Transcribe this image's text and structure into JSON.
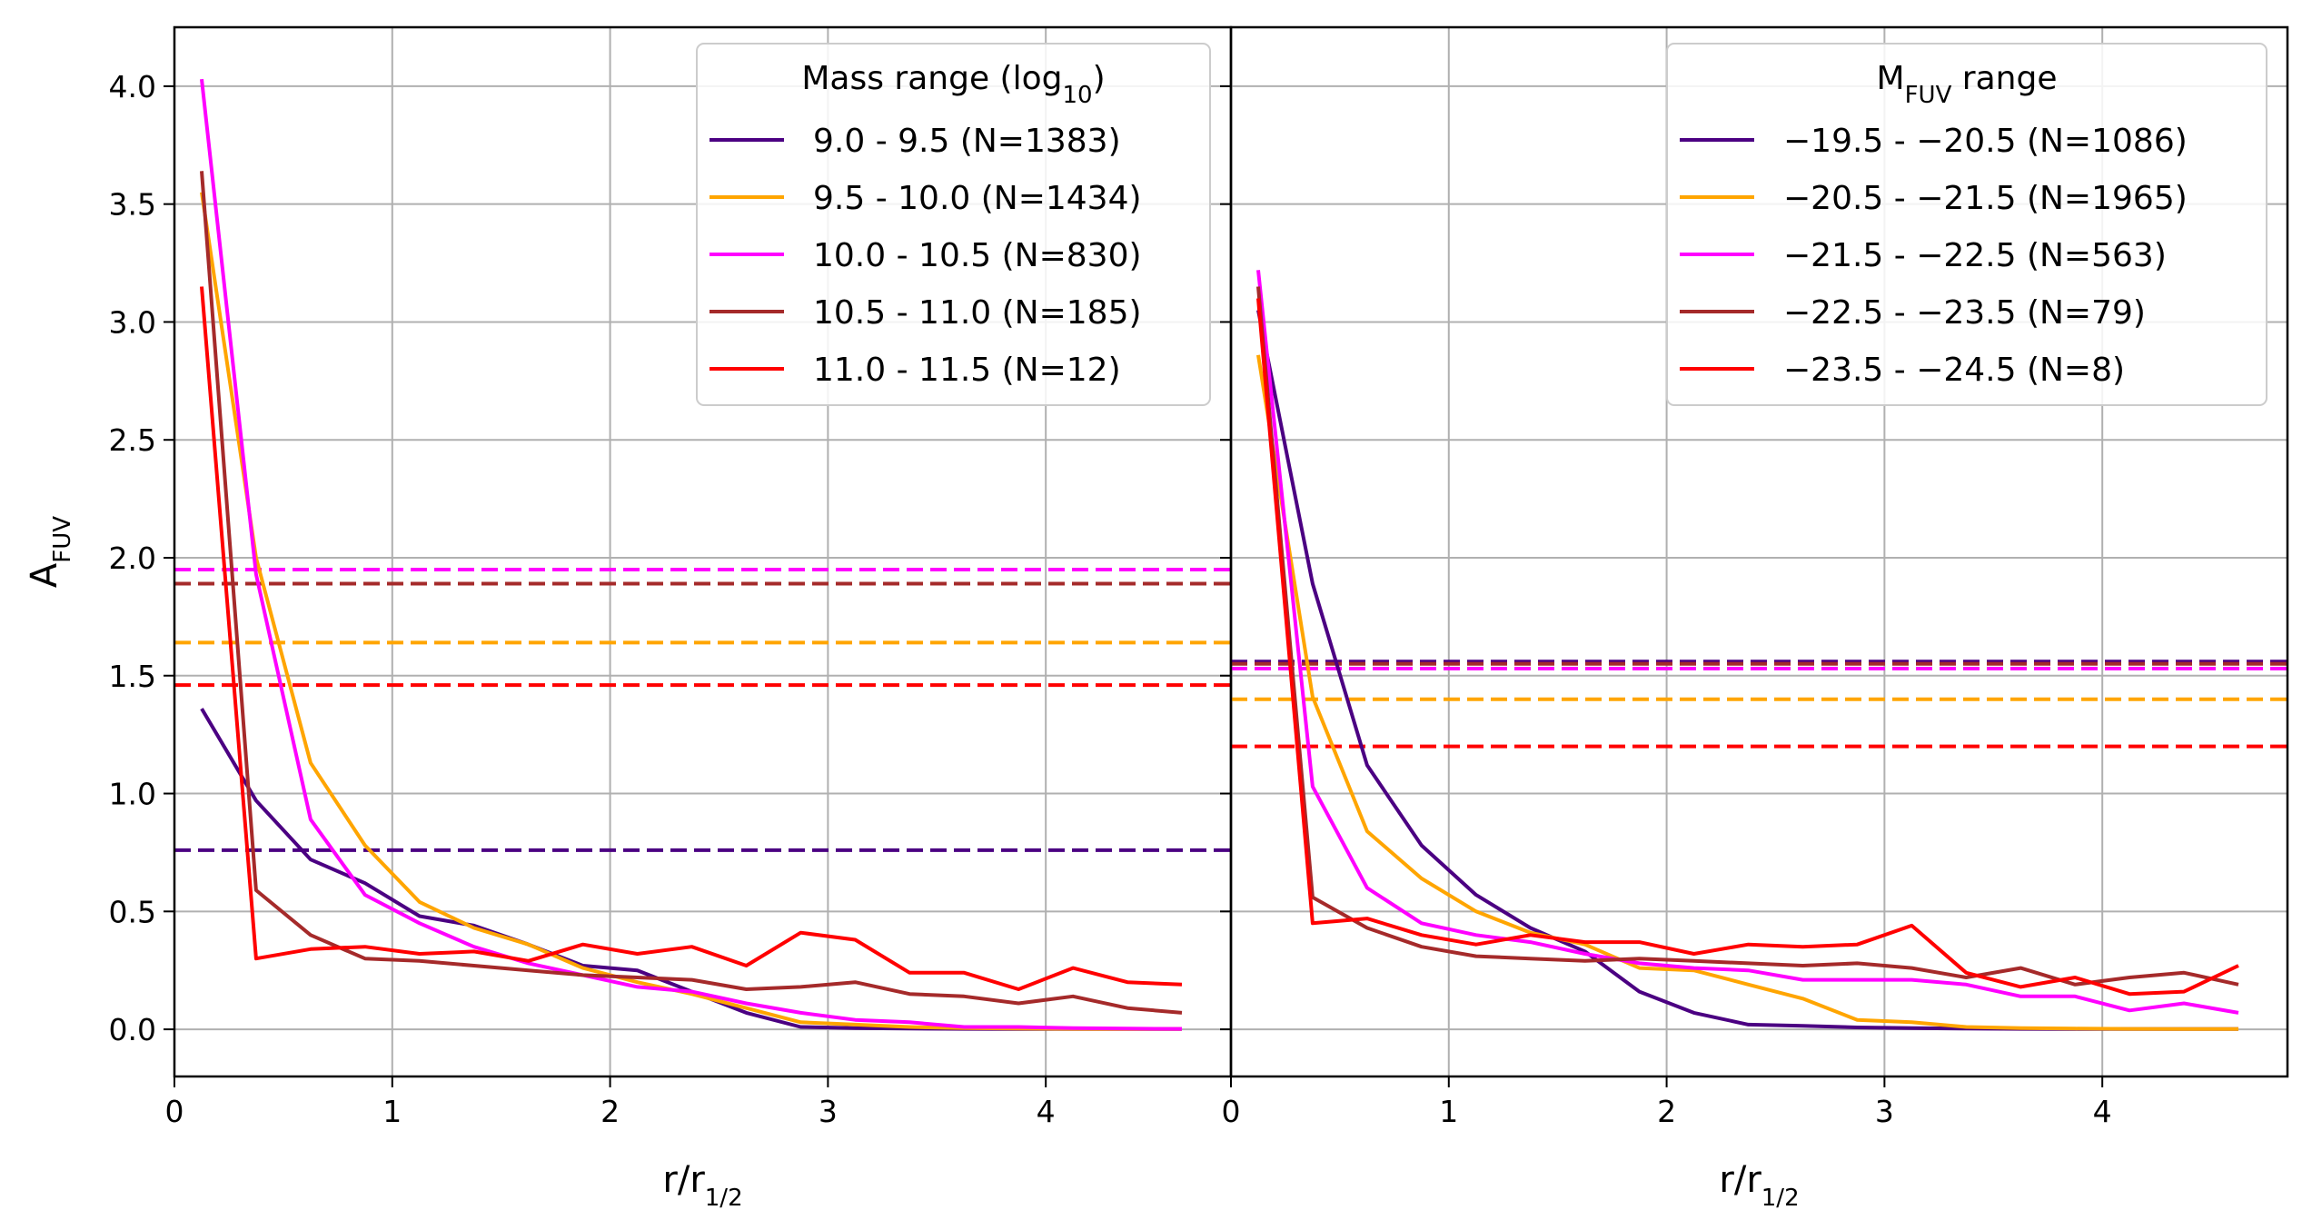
{
  "chart_data": [
    {
      "type": "line",
      "panel": "left",
      "xlabel": "r/r",
      "xlabel_sub": "1/2",
      "ylabel": "A",
      "ylabel_sub": "FUV",
      "xlim": [
        0,
        4.85
      ],
      "ylim": [
        -0.2,
        4.25
      ],
      "xticks": [
        0,
        1,
        2,
        3,
        4
      ],
      "yticks": [
        0.0,
        0.5,
        1.0,
        1.5,
        2.0,
        2.5,
        3.0,
        3.5,
        4.0
      ],
      "ytick_labels": [
        "0.0",
        "0.5",
        "1.0",
        "1.5",
        "2.0",
        "2.5",
        "3.0",
        "3.5",
        "4.0"
      ],
      "grid": true,
      "legend": {
        "title": "Mass range (log",
        "title_sub": "10",
        "title_end": ")",
        "placement": "top-right"
      },
      "x": [
        0.125,
        0.375,
        0.625,
        0.875,
        1.125,
        1.375,
        1.625,
        1.875,
        2.125,
        2.375,
        2.625,
        2.875,
        3.125,
        3.375,
        3.625,
        3.875,
        4.125,
        4.375,
        4.625
      ],
      "series": [
        {
          "name": "9.0 - 9.5 (N=1383)",
          "color": "#4b0082",
          "values": [
            1.36,
            0.97,
            0.72,
            0.62,
            0.48,
            0.44,
            0.36,
            0.27,
            0.25,
            0.16,
            0.07,
            0.01,
            0.005,
            0.003,
            0.002,
            0.001,
            0.001,
            0.001,
            0.001
          ],
          "mean": 0.76
        },
        {
          "name": "9.5 - 10.0 (N=1434)",
          "color": "#ffa500",
          "values": [
            3.55,
            2.0,
            1.13,
            0.78,
            0.54,
            0.43,
            0.36,
            0.26,
            0.2,
            0.15,
            0.09,
            0.03,
            0.02,
            0.01,
            0.005,
            0.003,
            0.002,
            0.001,
            0.001
          ],
          "mean": 1.64
        },
        {
          "name": "10.0 - 10.5 (N=830)",
          "color": "#ff00ff",
          "values": [
            4.03,
            1.93,
            0.89,
            0.57,
            0.45,
            0.35,
            0.28,
            0.23,
            0.18,
            0.16,
            0.11,
            0.07,
            0.04,
            0.03,
            0.01,
            0.01,
            0.005,
            0.003,
            0.002
          ],
          "mean": 1.95
        },
        {
          "name": "10.5 - 11.0 (N=185)",
          "color": "#a52a2a",
          "values": [
            3.64,
            0.59,
            0.4,
            0.3,
            0.29,
            0.27,
            0.25,
            0.23,
            0.22,
            0.21,
            0.17,
            0.18,
            0.2,
            0.15,
            0.14,
            0.11,
            0.14,
            0.09,
            0.07
          ],
          "mean": 1.89
        },
        {
          "name": "11.0 - 11.5 (N=12)",
          "color": "#ff0000",
          "values": [
            3.15,
            0.3,
            0.34,
            0.35,
            0.32,
            0.33,
            0.29,
            0.36,
            0.32,
            0.35,
            0.27,
            0.41,
            0.38,
            0.24,
            0.24,
            0.17,
            0.26,
            0.2,
            0.19
          ],
          "mean": 1.46
        }
      ]
    },
    {
      "type": "line",
      "panel": "right",
      "xlabel": "r/r",
      "xlabel_sub": "1/2",
      "xlim": [
        0,
        4.85
      ],
      "ylim": [
        -0.2,
        4.25
      ],
      "xticks": [
        0,
        1,
        2,
        3,
        4
      ],
      "grid": true,
      "legend": {
        "title": "M",
        "title_sub": "FUV",
        "title_end": " range",
        "placement": "top-right"
      },
      "x": [
        0.125,
        0.375,
        0.625,
        0.875,
        1.125,
        1.375,
        1.625,
        1.875,
        2.125,
        2.375,
        2.625,
        2.875,
        3.125,
        3.375,
        3.625,
        3.875,
        4.125,
        4.375,
        4.625
      ],
      "series": [
        {
          "name": "−19.5 - −20.5 (N=1086)",
          "color": "#4b0082",
          "values": [
            3.05,
            1.89,
            1.12,
            0.78,
            0.57,
            0.43,
            0.33,
            0.16,
            0.07,
            0.02,
            0.015,
            0.008,
            0.005,
            0.003,
            0.002,
            0.001,
            0.001,
            0.001,
            0.001
          ],
          "mean": 1.56
        },
        {
          "name": "−20.5 - −21.5 (N=1965)",
          "color": "#ffa500",
          "values": [
            2.86,
            1.41,
            0.84,
            0.64,
            0.5,
            0.41,
            0.36,
            0.26,
            0.25,
            0.19,
            0.13,
            0.04,
            0.03,
            0.01,
            0.005,
            0.003,
            0.002,
            0.001,
            0.001
          ],
          "mean": 1.4
        },
        {
          "name": "−21.5 - −22.5 (N=563)",
          "color": "#ff00ff",
          "values": [
            3.22,
            1.03,
            0.6,
            0.45,
            0.4,
            0.37,
            0.32,
            0.28,
            0.26,
            0.25,
            0.21,
            0.21,
            0.21,
            0.19,
            0.14,
            0.14,
            0.08,
            0.11,
            0.07
          ],
          "mean": 1.53
        },
        {
          "name": "−22.5 - −23.5 (N=79)",
          "color": "#a52a2a",
          "values": [
            3.15,
            0.56,
            0.43,
            0.35,
            0.31,
            0.3,
            0.29,
            0.3,
            0.29,
            0.28,
            0.27,
            0.28,
            0.26,
            0.22,
            0.26,
            0.19,
            0.22,
            0.24,
            0.19
          ],
          "mean": 1.55
        },
        {
          "name": "−23.5 - −24.5 (N=8)",
          "color": "#ff0000",
          "values": [
            3.1,
            0.45,
            0.47,
            0.4,
            0.36,
            0.4,
            0.37,
            0.37,
            0.32,
            0.36,
            0.35,
            0.36,
            0.44,
            0.24,
            0.18,
            0.22,
            0.15,
            0.16,
            0.27
          ],
          "mean": 1.2
        }
      ]
    }
  ]
}
